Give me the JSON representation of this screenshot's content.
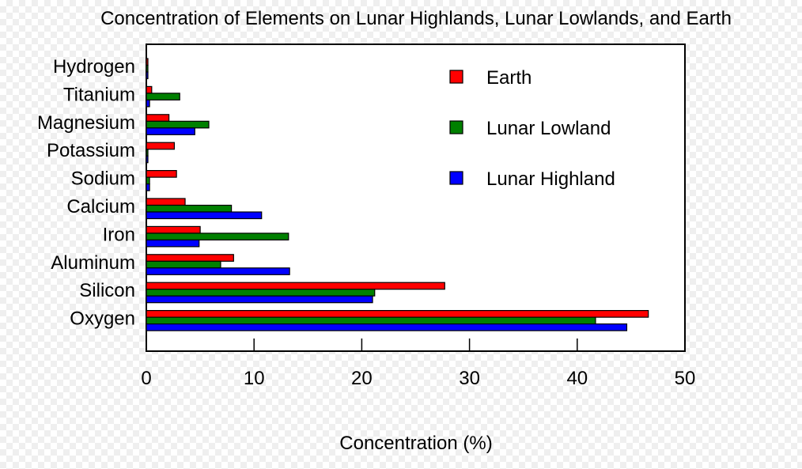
{
  "chart_data": {
    "type": "bar",
    "orientation": "horizontal",
    "title": "Concentration of Elements on Lunar Highlands, Lunar Lowlands, and Earth",
    "xlabel": "Concentration (%)",
    "ylabel": "",
    "xlim": [
      0,
      50
    ],
    "xticks": [
      0,
      10,
      20,
      30,
      40,
      50
    ],
    "grid": false,
    "legend_position": "top-right",
    "categories": [
      "Hydrogen",
      "Titanium",
      "Magnesium",
      "Potassium",
      "Sodium",
      "Calcium",
      "Iron",
      "Aluminum",
      "Silicon",
      "Oxygen"
    ],
    "series": [
      {
        "name": "Earth",
        "color": "#ff0000",
        "values": [
          0.14,
          0.5,
          2.1,
          2.6,
          2.8,
          3.6,
          5.0,
          8.1,
          27.7,
          46.6
        ]
      },
      {
        "name": "Lunar Lowland",
        "color": "#008000",
        "values": [
          0.0,
          3.1,
          5.8,
          0.1,
          0.3,
          7.9,
          13.2,
          6.9,
          21.2,
          41.7
        ]
      },
      {
        "name": "Lunar Highland",
        "color": "#0000ff",
        "values": [
          0.0,
          0.3,
          4.5,
          0.1,
          0.3,
          10.7,
          4.9,
          13.3,
          21.0,
          44.6
        ]
      }
    ]
  }
}
